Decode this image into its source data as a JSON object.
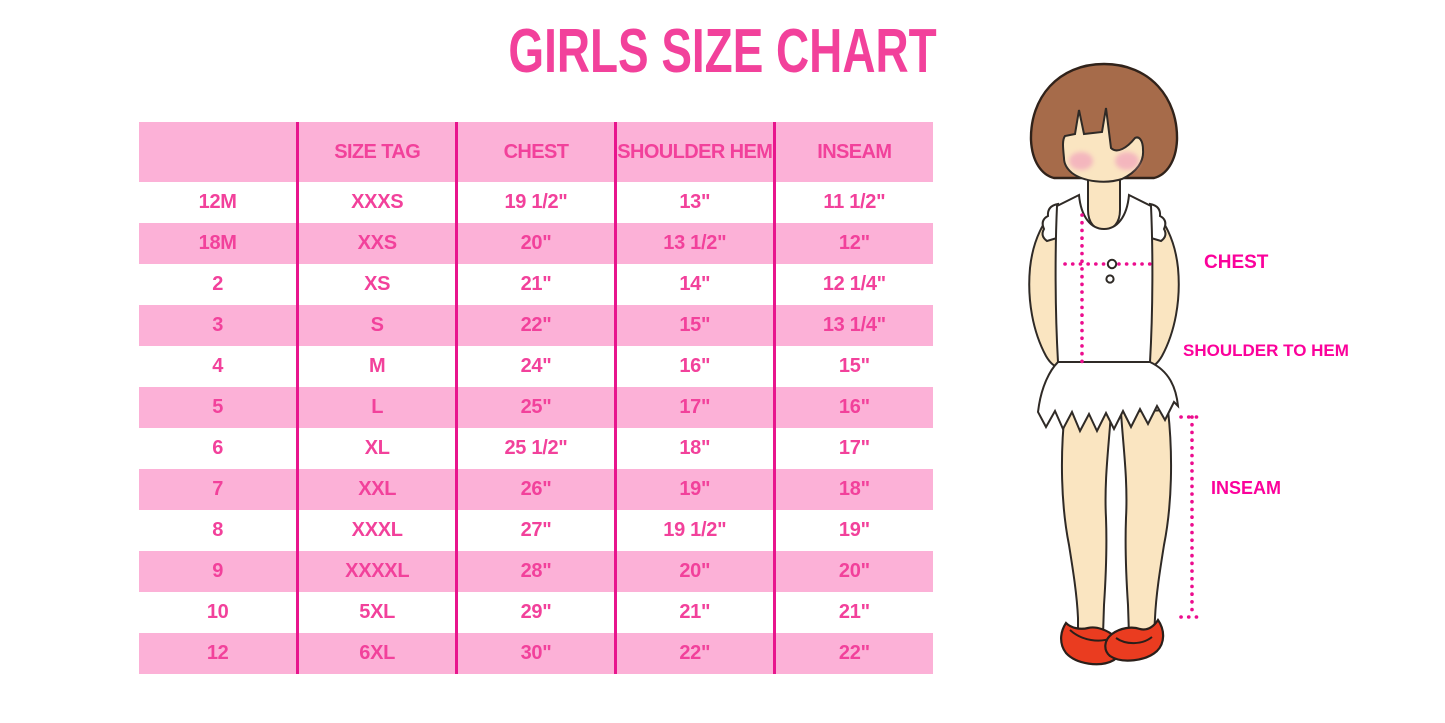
{
  "title": "GIRLS SIZE CHART",
  "table": {
    "headers": [
      "",
      "SIZE TAG",
      "CHEST",
      "SHOULDER HEM",
      "INSEAM"
    ],
    "rows": [
      [
        "12M",
        "XXXS",
        "19 1/2\"",
        "13\"",
        "11 1/2\""
      ],
      [
        "18M",
        "XXS",
        "20\"",
        "13 1/2\"",
        "12\""
      ],
      [
        "2",
        "XS",
        "21\"",
        "14\"",
        "12 1/4\""
      ],
      [
        "3",
        "S",
        "22\"",
        "15\"",
        "13 1/4\""
      ],
      [
        "4",
        "M",
        "24\"",
        "16\"",
        "15\""
      ],
      [
        "5",
        "L",
        "25\"",
        "17\"",
        "16\""
      ],
      [
        "6",
        "XL",
        "25 1/2\"",
        "18\"",
        "17\""
      ],
      [
        "7",
        "XXL",
        "26\"",
        "19\"",
        "18\""
      ],
      [
        "8",
        "XXXL",
        "27\"",
        "19 1/2\"",
        "19\""
      ],
      [
        "9",
        "XXXXL",
        "28\"",
        "20\"",
        "20\""
      ],
      [
        "10",
        "5XL",
        "29\"",
        "21\"",
        "21\""
      ],
      [
        "12",
        "6XL",
        "30\"",
        "22\"",
        "22\""
      ]
    ]
  },
  "figure_labels": {
    "chest": "CHEST",
    "shoulder_to_hem": "SHOULDER TO HEM",
    "inseam": "INSEAM"
  },
  "colors": {
    "title_pink": "#F2419B",
    "row_band_pink": "#FCB1D7",
    "divider_magenta": "#E8158D",
    "cell_text_pink": "#F2419B",
    "label_magenta": "#FB019B",
    "dotted_line_magenta": "#EC0D8E",
    "hair_brown": "#A66B4A",
    "skin": "#FAE5C1",
    "blush_pink": "#F3AEBD",
    "shoe_red": "#EA3C20",
    "outline_dark": "#2F2A26"
  },
  "chart_data": {
    "type": "table",
    "title": "GIRLS SIZE CHART",
    "columns": [
      "",
      "SIZE TAG",
      "CHEST",
      "SHOULDER HEM",
      "INSEAM"
    ],
    "rows": [
      [
        "12M",
        "XXXS",
        "19 1/2\"",
        "13\"",
        "11 1/2\""
      ],
      [
        "18M",
        "XXS",
        "20\"",
        "13 1/2\"",
        "12\""
      ],
      [
        "2",
        "XS",
        "21\"",
        "14\"",
        "12 1/4\""
      ],
      [
        "3",
        "S",
        "22\"",
        "15\"",
        "13 1/4\""
      ],
      [
        "4",
        "M",
        "24\"",
        "16\"",
        "15\""
      ],
      [
        "5",
        "L",
        "25\"",
        "17\"",
        "16\""
      ],
      [
        "6",
        "XL",
        "25 1/2\"",
        "18\"",
        "17\""
      ],
      [
        "7",
        "XXL",
        "26\"",
        "19\"",
        "18\""
      ],
      [
        "8",
        "XXXL",
        "27\"",
        "19 1/2\"",
        "19\""
      ],
      [
        "9",
        "XXXXL",
        "28\"",
        "20\"",
        "20\""
      ],
      [
        "10",
        "5XL",
        "29\"",
        "21\"",
        "21\""
      ],
      [
        "12",
        "6XL",
        "30\"",
        "22\"",
        "22\""
      ]
    ]
  }
}
